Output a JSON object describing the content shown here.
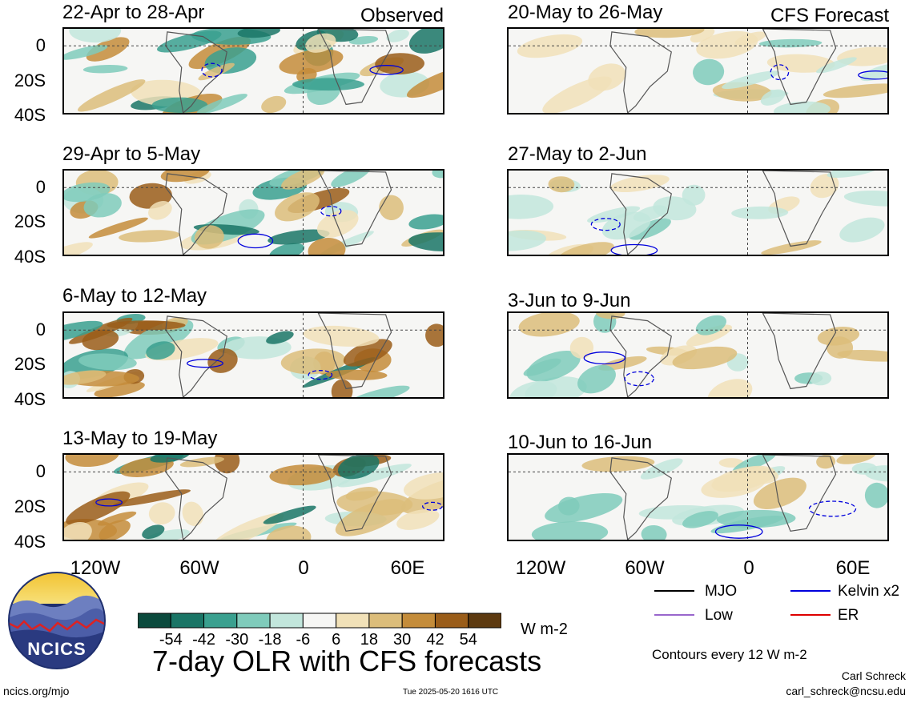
{
  "panels_observed": [
    {
      "title": "22-Apr to 28-Apr",
      "tag": "Observed"
    },
    {
      "title": "29-Apr to 5-May",
      "tag": ""
    },
    {
      "title": "6-May to 12-May",
      "tag": ""
    },
    {
      "title": "13-May to 19-May",
      "tag": ""
    }
  ],
  "panels_forecast": [
    {
      "title": "20-May to 26-May",
      "tag": "CFS Forecast"
    },
    {
      "title": "27-May to 2-Jun",
      "tag": ""
    },
    {
      "title": "3-Jun to 9-Jun",
      "tag": ""
    },
    {
      "title": "10-Jun to 16-Jun",
      "tag": ""
    }
  ],
  "y_axis_labels": [
    "0",
    "20S",
    "40S"
  ],
  "x_axis_labels": [
    "120W",
    "60W",
    "0",
    "60E"
  ],
  "colorbar": {
    "colors": [
      "#0b4a3d",
      "#1a7566",
      "#3aa08f",
      "#7fcbbb",
      "#c2e6dc",
      "#f6f6f4",
      "#f1e1b8",
      "#dcbd7a",
      "#c48c3a",
      "#9a5d19",
      "#5d3a10"
    ],
    "labels": [
      "-54",
      "-42",
      "-30",
      "-18",
      "-6",
      "6",
      "18",
      "30",
      "42",
      "54"
    ],
    "units": "W m-2"
  },
  "main_title": "7-day OLR with CFS forecasts",
  "legend": {
    "items": [
      {
        "label": "MJO",
        "color": "#000000"
      },
      {
        "label": "Kelvin x2",
        "color": "#0000dd"
      },
      {
        "label": "Low",
        "color": "#9966cc"
      },
      {
        "label": "ER",
        "color": "#dd0000"
      }
    ]
  },
  "contours_note": "Contours every 12 W m-2",
  "logo_text": "NCICS",
  "footer_left": "ncics.org/mjo",
  "footer_center": "Tue 2025-05-20 1616 UTC",
  "author_name": "Carl Schreck",
  "author_email": "carl_schreck@ncsu.edu"
}
